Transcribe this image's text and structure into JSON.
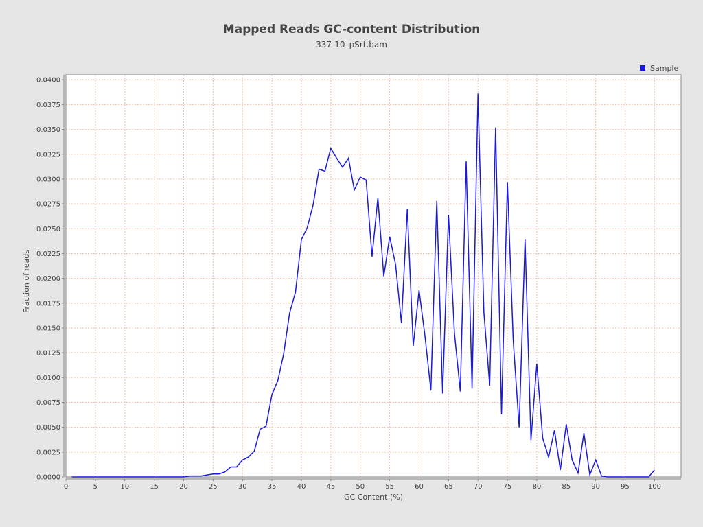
{
  "chart_data": {
    "type": "line",
    "title": "Mapped Reads GC-content Distribution",
    "subtitle": "337-10_pSrt.bam",
    "xlabel": "GC Content (%)",
    "ylabel": "Fraction of reads",
    "xlim": [
      0,
      104.5
    ],
    "ylim": [
      0,
      0.0405
    ],
    "x_ticks": [
      0,
      5,
      10,
      15,
      20,
      25,
      30,
      35,
      40,
      45,
      50,
      55,
      60,
      65,
      70,
      75,
      80,
      85,
      90,
      95,
      100
    ],
    "y_ticks": [
      "0.0000",
      "0.0025",
      "0.0050",
      "0.0075",
      "0.0100",
      "0.0125",
      "0.0150",
      "0.0175",
      "0.0200",
      "0.0225",
      "0.0250",
      "0.0275",
      "0.0300",
      "0.0325",
      "0.0350",
      "0.0375",
      "0.0400"
    ],
    "grid": true,
    "legend_position": "top-right",
    "series": [
      {
        "name": "Sample",
        "color": "#1a1adc",
        "x": [
          1,
          2,
          3,
          4,
          5,
          6,
          7,
          8,
          9,
          10,
          11,
          12,
          13,
          14,
          15,
          16,
          17,
          18,
          19,
          20,
          21,
          22,
          23,
          24,
          25,
          26,
          27,
          28,
          29,
          30,
          31,
          32,
          33,
          34,
          35,
          36,
          37,
          38,
          39,
          40,
          41,
          42,
          43,
          44,
          45,
          46,
          47,
          48,
          49,
          50,
          51,
          52,
          53,
          54,
          55,
          56,
          57,
          58,
          59,
          60,
          61,
          62,
          63,
          64,
          65,
          66,
          67,
          68,
          69,
          70,
          71,
          72,
          73,
          74,
          75,
          76,
          77,
          78,
          79,
          80,
          81,
          82,
          83,
          84,
          85,
          86,
          87,
          88,
          89,
          90,
          91,
          92,
          93,
          94,
          95,
          96,
          97,
          98,
          99,
          100
        ],
        "values": [
          0,
          0,
          0,
          0,
          0,
          0,
          0,
          0,
          0,
          0,
          0,
          0,
          0,
          0,
          0,
          0,
          0,
          0,
          0,
          0,
          0.0001,
          0.0001,
          0.0001,
          0.0002,
          0.0003,
          0.0003,
          0.0005,
          0.001,
          0.001,
          0.0017,
          0.002,
          0.0026,
          0.0048,
          0.0051,
          0.0083,
          0.0097,
          0.0124,
          0.0165,
          0.0186,
          0.0239,
          0.0251,
          0.0274,
          0.031,
          0.0308,
          0.0331,
          0.0321,
          0.0312,
          0.0321,
          0.0289,
          0.0302,
          0.0299,
          0.0222,
          0.0281,
          0.0202,
          0.0242,
          0.0214,
          0.0155,
          0.027,
          0.0132,
          0.0188,
          0.0142,
          0.0087,
          0.0278,
          0.0084,
          0.0264,
          0.0145,
          0.0086,
          0.0318,
          0.0089,
          0.0386,
          0.0166,
          0.0092,
          0.0352,
          0.0063,
          0.0297,
          0.0137,
          0.005,
          0.0239,
          0.0037,
          0.0114,
          0.0039,
          0.002,
          0.0047,
          0.0007,
          0.0053,
          0.0017,
          0.0004,
          0.0044,
          0.0002,
          0.0017,
          0.0001,
          0,
          0,
          0,
          0,
          0,
          0,
          0,
          0,
          0.0007
        ]
      }
    ]
  }
}
